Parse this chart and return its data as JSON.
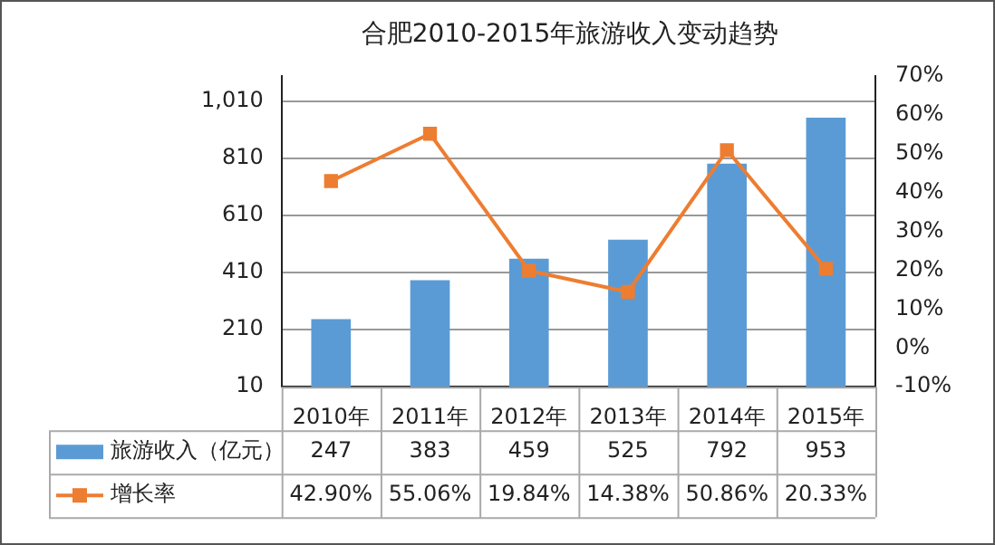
{
  "chart_data": {
    "type": "bar",
    "title": "合肥2010-2015年旅游收入变动趋势",
    "categories": [
      "2010年",
      "2011年",
      "2012年",
      "2013年",
      "2014年",
      "2015年"
    ],
    "series": [
      {
        "name": "旅游收入（亿元）",
        "color": "#5b9bd5",
        "values": [
          247,
          383,
          459,
          525,
          792,
          953
        ]
      },
      {
        "name": "增长率",
        "type": "line",
        "axis": "y2",
        "color": "#ed7d31",
        "marker": "square",
        "values": [
          42.9,
          55.06,
          19.84,
          14.38,
          50.86,
          20.33
        ],
        "value_labels": [
          "42.90%",
          "55.06%",
          "19.84%",
          "14.38%",
          "50.86%",
          "20.33%"
        ]
      }
    ],
    "data_labels": true,
    "ylim": [
      10,
      1100
    ],
    "yticks": [
      10,
      210,
      410,
      610,
      810,
      {
        "value": 1010,
        "label": "1,010"
      }
    ],
    "y2lim": [
      -10,
      70
    ],
    "y2ticks": [
      {
        "value": -10,
        "label": "-10%"
      },
      {
        "value": 0,
        "label": "0%"
      },
      {
        "value": 10,
        "label": "10%"
      },
      {
        "value": 20,
        "label": "20%"
      },
      {
        "value": 30,
        "label": "30%"
      },
      {
        "value": 40,
        "label": "40%"
      },
      {
        "value": 50,
        "label": "50%"
      },
      {
        "value": 60,
        "label": "60%"
      },
      {
        "value": 70,
        "label": "70%"
      }
    ],
    "grid": "y",
    "legend": "bottom"
  }
}
